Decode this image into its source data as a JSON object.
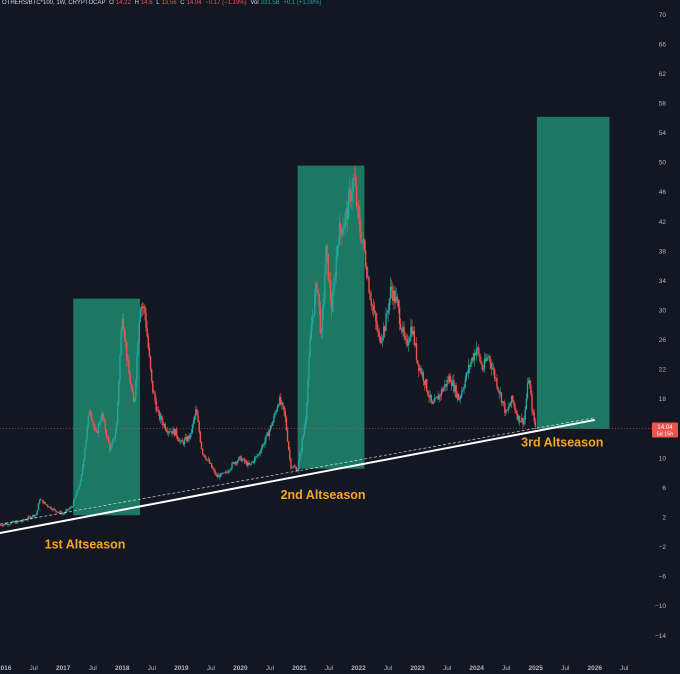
{
  "header": {
    "symbol": "OTHERS/BTC*100, 1W, CRYPTOCAP",
    "o_label": "O",
    "o_value": "14.22",
    "h_label": "H",
    "h_value": "14.6",
    "l_label": "L",
    "l_value": "13.56",
    "c_label": "C",
    "c_value": "14.04",
    "change": "−0.17 (−1.19%)",
    "vol_label": "Vol",
    "vol_value": "331.5B",
    "vol_change": "+0.1 (+1.08%)"
  },
  "price_badge": {
    "price": "14.04",
    "countdown": "5d 15h"
  },
  "colors": {
    "background": "#131722",
    "up": "#26a69a",
    "down": "#ef5350",
    "zone": "#1e8c72",
    "trendline": "#ffffff",
    "annotation": "#f5a623",
    "axis_text": "#b2b5be",
    "price_line": "#ef5350"
  },
  "chart_data": {
    "type": "candlestick",
    "title": "OTHERS/BTC*100, 1W, CRYPTOCAP",
    "y_ticks": [
      70,
      66,
      62,
      58,
      54,
      50,
      46,
      42,
      38,
      34,
      30,
      26,
      22,
      18,
      14,
      10,
      6,
      2,
      -2,
      -6,
      -10,
      -14
    ],
    "y_tick_labels": [
      "70",
      "66",
      "62",
      "58",
      "54",
      "50",
      "46",
      "42",
      "38",
      "34",
      "30",
      "26",
      "22",
      "18",
      "14",
      "10",
      "6",
      "2",
      "−2",
      "−6",
      "−10",
      "−14"
    ],
    "ylim": [
      -17,
      72
    ],
    "x_ticks": [
      2016.0,
      2016.5,
      2017.0,
      2017.5,
      2018.0,
      2018.5,
      2019.0,
      2019.5,
      2020.0,
      2020.5,
      2021.0,
      2021.5,
      2022.0,
      2022.5,
      2023.0,
      2023.5,
      2024.0,
      2024.5,
      2025.0,
      2025.5,
      2026.0,
      2026.5
    ],
    "x_tick_labels": [
      "2016",
      "Jul",
      "2017",
      "Jul",
      "2018",
      "Jul",
      "2019",
      "Jul",
      "2020",
      "Jul",
      "2021",
      "Jul",
      "2022",
      "Jul",
      "2023",
      "Jul",
      "2024",
      "Jul",
      "2025",
      "Jul",
      "2026",
      "Jul"
    ],
    "xlim": [
      2015.93,
      2027.02
    ],
    "price_path": [
      [
        2015.93,
        1.0
      ],
      [
        2016.3,
        1.5
      ],
      [
        2016.55,
        2.5
      ],
      [
        2016.6,
        4.5
      ],
      [
        2016.7,
        3.8
      ],
      [
        2016.85,
        3.0
      ],
      [
        2017.0,
        2.5
      ],
      [
        2017.15,
        3.5
      ],
      [
        2017.3,
        7
      ],
      [
        2017.45,
        17
      ],
      [
        2017.55,
        13
      ],
      [
        2017.65,
        16
      ],
      [
        2017.8,
        11
      ],
      [
        2017.9,
        14
      ],
      [
        2018.0,
        30
      ],
      [
        2018.1,
        22
      ],
      [
        2018.2,
        17
      ],
      [
        2018.3,
        31
      ],
      [
        2018.38,
        30
      ],
      [
        2018.5,
        20
      ],
      [
        2018.6,
        16
      ],
      [
        2018.75,
        14
      ],
      [
        2018.9,
        13.5
      ],
      [
        2019.0,
        12
      ],
      [
        2019.15,
        13
      ],
      [
        2019.25,
        16.5
      ],
      [
        2019.35,
        11
      ],
      [
        2019.5,
        9
      ],
      [
        2019.6,
        7.5
      ],
      [
        2019.75,
        8
      ],
      [
        2019.9,
        9.5
      ],
      [
        2020.0,
        10
      ],
      [
        2020.15,
        9
      ],
      [
        2020.3,
        10.5
      ],
      [
        2020.45,
        13
      ],
      [
        2020.55,
        15
      ],
      [
        2020.65,
        18
      ],
      [
        2020.75,
        16
      ],
      [
        2020.85,
        9
      ],
      [
        2020.97,
        8.5
      ],
      [
        2021.1,
        15
      ],
      [
        2021.2,
        28
      ],
      [
        2021.3,
        34
      ],
      [
        2021.37,
        26
      ],
      [
        2021.45,
        38
      ],
      [
        2021.55,
        30
      ],
      [
        2021.65,
        40
      ],
      [
        2021.8,
        43
      ],
      [
        2021.92,
        48
      ],
      [
        2022.0,
        42
      ],
      [
        2022.1,
        38
      ],
      [
        2022.2,
        32
      ],
      [
        2022.35,
        26
      ],
      [
        2022.45,
        28
      ],
      [
        2022.55,
        33
      ],
      [
        2022.65,
        31
      ],
      [
        2022.8,
        25
      ],
      [
        2022.9,
        28
      ],
      [
        2023.0,
        23
      ],
      [
        2023.1,
        21
      ],
      [
        2023.25,
        17
      ],
      [
        2023.4,
        19
      ],
      [
        2023.55,
        21
      ],
      [
        2023.7,
        18
      ],
      [
        2023.9,
        23
      ],
      [
        2024.0,
        25
      ],
      [
        2024.1,
        22
      ],
      [
        2024.2,
        24
      ],
      [
        2024.35,
        20
      ],
      [
        2024.5,
        16
      ],
      [
        2024.6,
        18
      ],
      [
        2024.7,
        15.5
      ],
      [
        2024.8,
        15
      ],
      [
        2024.88,
        21
      ],
      [
        2024.95,
        16
      ],
      [
        2025.0,
        14.04
      ]
    ],
    "series": [
      {
        "name": "OTHERS/BTC*100",
        "type": "candlestick",
        "last_close": 14.04
      }
    ],
    "zones": [
      {
        "label": "1st Altseason",
        "x": [
          2017.17,
          2018.3
        ],
        "y": [
          2.3,
          31.6
        ]
      },
      {
        "label": "2nd Altseason",
        "x": [
          2020.97,
          2022.1
        ],
        "y": [
          8.6,
          49.6
        ]
      },
      {
        "label": "3rd Altseason",
        "x": [
          2025.02,
          2026.25
        ],
        "y": [
          14.0,
          56.2
        ]
      }
    ],
    "trendline": {
      "points": [
        [
          2015.93,
          -0.1
        ],
        [
          2026.0,
          15.2
        ]
      ]
    },
    "current_price": 14.04,
    "grid": false
  }
}
